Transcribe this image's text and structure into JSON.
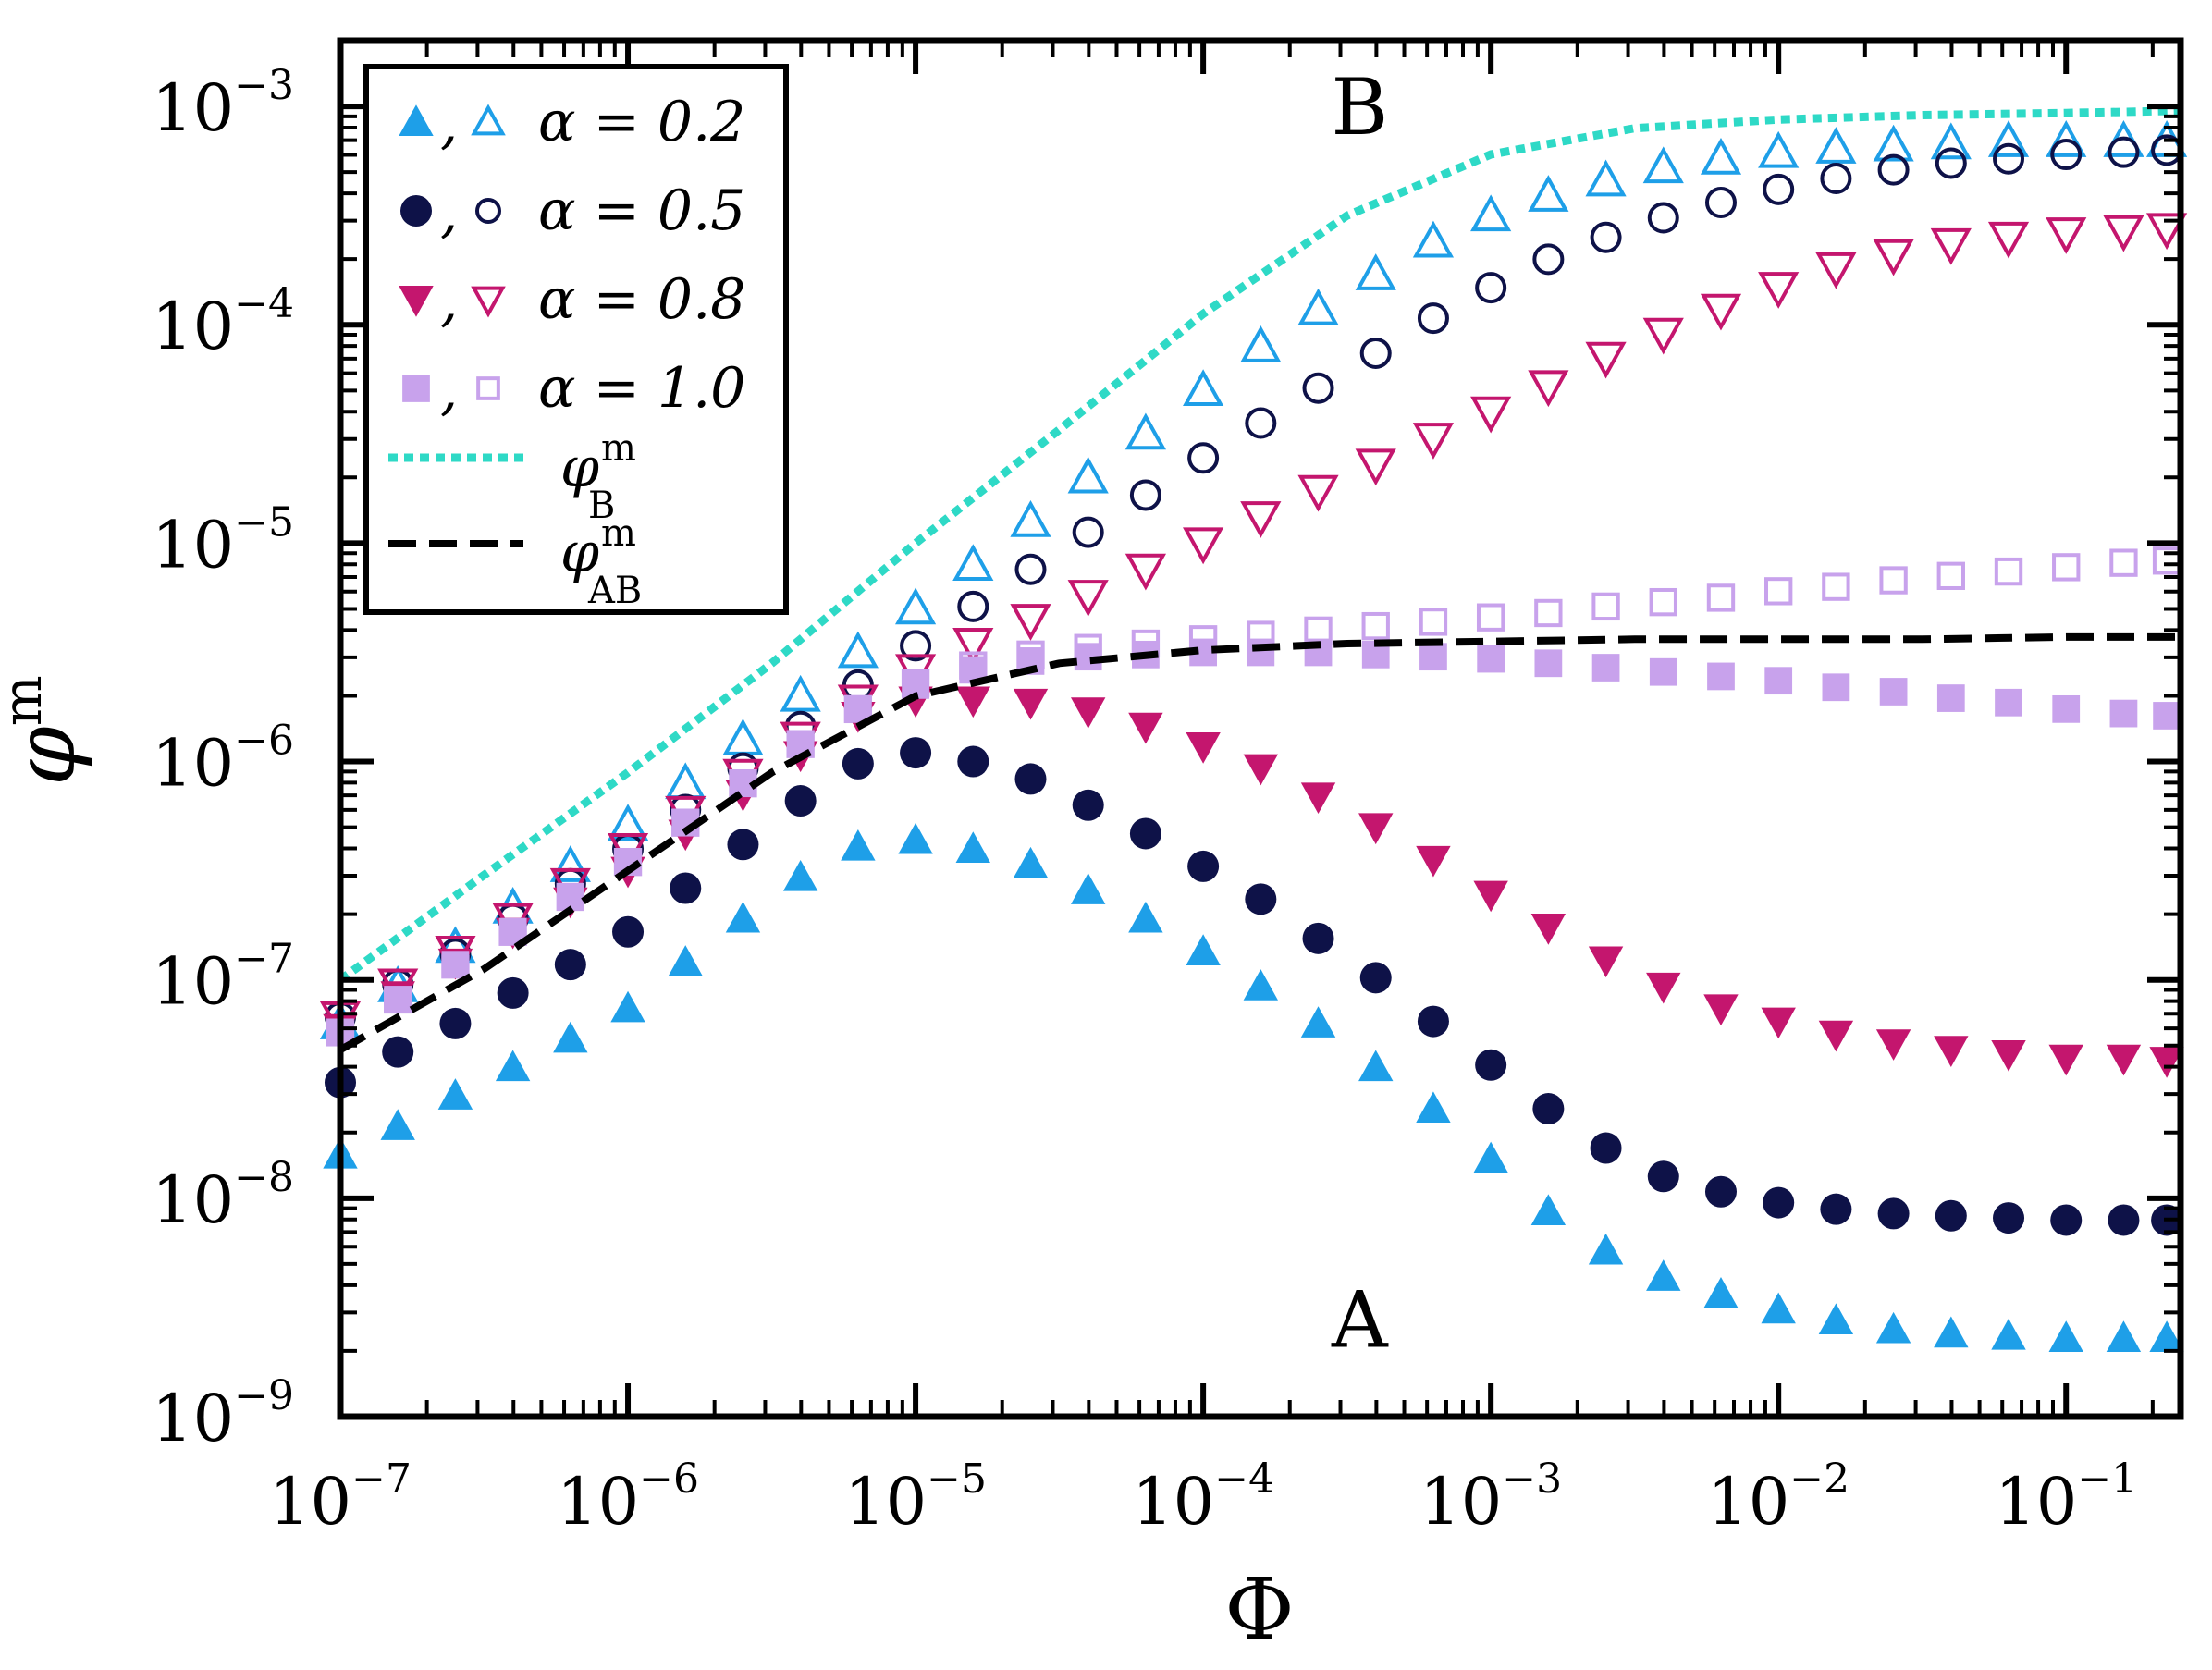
{
  "chart_data": {
    "type": "scatter",
    "xscale": "log",
    "yscale": "log",
    "xlabel": "Φ",
    "ylabel": "φ^m",
    "xlim": [
      1e-07,
      0.25
    ],
    "ylim": [
      1e-09,
      0.002
    ],
    "x_tick_labels": [
      "10^-7",
      "10^-6",
      "10^-5",
      "10^-4",
      "10^-3",
      "10^-2",
      "10^-1"
    ],
    "y_tick_labels": [
      "10^-9",
      "10^-8",
      "10^-7",
      "10^-6",
      "10^-5",
      "10^-4",
      "10^-3"
    ],
    "annotations": [
      {
        "text": "A",
        "x": 0.00035,
        "y": 2.8e-09
      },
      {
        "text": "B",
        "x": 0.00035,
        "y": 0.001
      }
    ],
    "legend": {
      "placement": "top-left",
      "entries": [
        {
          "series": "alpha_0.2",
          "label": "α = 0.2"
        },
        {
          "series": "alpha_0.5",
          "label": "α = 0.5"
        },
        {
          "series": "alpha_0.8",
          "label": "α = 0.8"
        },
        {
          "series": "alpha_1.0",
          "label": "α = 1.0"
        },
        {
          "series": "phi_B",
          "label": "φ",
          "sup": "m",
          "sub": "B"
        },
        {
          "series": "phi_AB",
          "label": "φ",
          "sup": "m",
          "sub": "AB"
        }
      ]
    },
    "x_log10": [
      -7.0,
      -6.8,
      -6.6,
      -6.4,
      -6.2,
      -6.0,
      -5.8,
      -5.6,
      -5.4,
      -5.2,
      -5.0,
      -4.8,
      -4.6,
      -4.4,
      -4.2,
      -4.0,
      -3.8,
      -3.6,
      -3.4,
      -3.2,
      -3.0,
      -2.8,
      -2.6,
      -2.4,
      -2.2,
      -2.0,
      -1.8,
      -1.6,
      -1.4,
      -1.2,
      -1.0,
      -0.8,
      -0.65
    ],
    "series": [
      {
        "name": "alpha_0.2",
        "color": "#1E9FE8",
        "marker": "triangle-up",
        "filled_log10": [
          -7.8,
          -7.67,
          -7.53,
          -7.4,
          -7.27,
          -7.13,
          -6.92,
          -6.72,
          -6.53,
          -6.39,
          -6.36,
          -6.4,
          -6.47,
          -6.59,
          -6.72,
          -6.87,
          -7.03,
          -7.2,
          -7.4,
          -7.59,
          -7.82,
          -8.06,
          -8.24,
          -8.36,
          -8.44,
          -8.51,
          -8.56,
          -8.6,
          -8.62,
          -8.63,
          -8.64,
          -8.64,
          -8.64
        ],
        "hollow_log10": [
          -7.2,
          -7.03,
          -6.85,
          -6.67,
          -6.48,
          -6.29,
          -6.1,
          -5.9,
          -5.7,
          -5.5,
          -5.3,
          -5.1,
          -4.9,
          -4.7,
          -4.5,
          -4.3,
          -4.1,
          -3.93,
          -3.77,
          -3.62,
          -3.5,
          -3.41,
          -3.34,
          -3.28,
          -3.24,
          -3.21,
          -3.19,
          -3.18,
          -3.17,
          -3.16,
          -3.16,
          -3.16,
          -3.16
        ]
      },
      {
        "name": "alpha_0.5",
        "color": "#0E1248",
        "marker": "circle",
        "filled_log10": [
          -7.47,
          -7.33,
          -7.2,
          -7.06,
          -6.93,
          -6.78,
          -6.58,
          -6.38,
          -6.18,
          -6.01,
          -5.96,
          -6.0,
          -6.08,
          -6.2,
          -6.33,
          -6.48,
          -6.63,
          -6.81,
          -6.99,
          -7.19,
          -7.39,
          -7.59,
          -7.77,
          -7.9,
          -7.97,
          -8.02,
          -8.05,
          -8.07,
          -8.08,
          -8.09,
          -8.1,
          -8.1,
          -8.1
        ],
        "hollow_log10": [
          -7.17,
          -7.02,
          -6.88,
          -6.72,
          -6.56,
          -6.4,
          -6.22,
          -6.03,
          -5.84,
          -5.65,
          -5.47,
          -5.29,
          -5.12,
          -4.95,
          -4.78,
          -4.61,
          -4.45,
          -4.29,
          -4.13,
          -3.97,
          -3.83,
          -3.7,
          -3.6,
          -3.51,
          -3.44,
          -3.38,
          -3.33,
          -3.29,
          -3.26,
          -3.24,
          -3.22,
          -3.21,
          -3.2
        ]
      },
      {
        "name": "alpha_0.8",
        "color": "#C4166E",
        "marker": "triangle-down",
        "filled_log10": [
          -7.22,
          -7.07,
          -6.92,
          -6.78,
          -6.64,
          -6.5,
          -6.33,
          -6.15,
          -5.97,
          -5.79,
          -5.72,
          -5.72,
          -5.73,
          -5.77,
          -5.84,
          -5.93,
          -6.03,
          -6.16,
          -6.3,
          -6.45,
          -6.61,
          -6.76,
          -6.91,
          -7.03,
          -7.13,
          -7.19,
          -7.25,
          -7.29,
          -7.32,
          -7.34,
          -7.36,
          -7.36,
          -7.37
        ],
        "hollow_log10": [
          -7.17,
          -7.02,
          -6.87,
          -6.72,
          -6.56,
          -6.4,
          -6.23,
          -6.06,
          -5.89,
          -5.72,
          -5.58,
          -5.46,
          -5.35,
          -5.24,
          -5.12,
          -5.0,
          -4.88,
          -4.76,
          -4.64,
          -4.52,
          -4.4,
          -4.28,
          -4.15,
          -4.04,
          -3.93,
          -3.83,
          -3.74,
          -3.68,
          -3.63,
          -3.6,
          -3.58,
          -3.57,
          -3.56
        ]
      },
      {
        "name": "alpha_1.0",
        "color": "#C8A2EC",
        "marker": "square",
        "filled_log10": [
          -7.24,
          -7.09,
          -6.93,
          -6.78,
          -6.62,
          -6.46,
          -6.28,
          -6.1,
          -5.92,
          -5.76,
          -5.65,
          -5.58,
          -5.54,
          -5.52,
          -5.51,
          -5.5,
          -5.5,
          -5.5,
          -5.51,
          -5.52,
          -5.53,
          -5.55,
          -5.57,
          -5.59,
          -5.61,
          -5.63,
          -5.66,
          -5.68,
          -5.71,
          -5.73,
          -5.76,
          -5.78,
          -5.79
        ],
        "hollow_log10": [
          -7.24,
          -7.09,
          -6.93,
          -6.78,
          -6.62,
          -6.46,
          -6.28,
          -6.1,
          -5.92,
          -5.76,
          -5.64,
          -5.56,
          -5.51,
          -5.48,
          -5.46,
          -5.44,
          -5.42,
          -5.4,
          -5.38,
          -5.36,
          -5.34,
          -5.32,
          -5.29,
          -5.27,
          -5.25,
          -5.22,
          -5.2,
          -5.17,
          -5.15,
          -5.13,
          -5.11,
          -5.09,
          -5.08
        ]
      }
    ],
    "lines": [
      {
        "name": "phi_B",
        "color": "#2ED9C6",
        "style": "dotted",
        "x_log10": [
          -7.0,
          -6.5,
          -6.0,
          -5.5,
          -5.0,
          -4.5,
          -4.0,
          -3.5,
          -3.0,
          -2.5,
          -2.0,
          -1.5,
          -1.0,
          -0.6
        ],
        "y_log10": [
          -7.0,
          -6.52,
          -6.05,
          -5.55,
          -5.0,
          -4.48,
          -3.95,
          -3.5,
          -3.22,
          -3.1,
          -3.06,
          -3.04,
          -3.03,
          -3.02
        ]
      },
      {
        "name": "phi_AB",
        "color": "#000000",
        "style": "dashed",
        "x_log10": [
          -7.0,
          -6.5,
          -6.0,
          -5.5,
          -5.0,
          -4.5,
          -4.0,
          -3.5,
          -3.0,
          -2.5,
          -2.0,
          -1.5,
          -1.0,
          -0.6
        ],
        "y_log10": [
          -7.32,
          -6.95,
          -6.5,
          -6.05,
          -5.7,
          -5.55,
          -5.49,
          -5.46,
          -5.45,
          -5.44,
          -5.44,
          -5.44,
          -5.43,
          -5.43
        ]
      }
    ]
  }
}
